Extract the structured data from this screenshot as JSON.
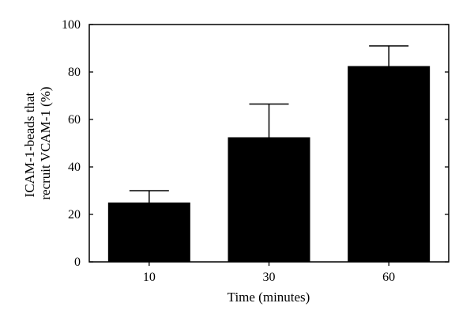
{
  "chart_data": {
    "type": "bar",
    "categories": [
      "10",
      "30",
      "60"
    ],
    "values": [
      25,
      52.5,
      82.5
    ],
    "errors_upper": [
      30,
      66.5,
      91
    ],
    "xlabel": "Time (minutes)",
    "ylabel_lines": [
      "ICAM-1-beads that",
      "recruit VCAM-1 (%)"
    ],
    "ylim": [
      0,
      100
    ],
    "yticks": [
      0,
      20,
      40,
      60,
      80,
      100
    ],
    "grid": false,
    "legend": "none",
    "bar_color": "#000000"
  }
}
